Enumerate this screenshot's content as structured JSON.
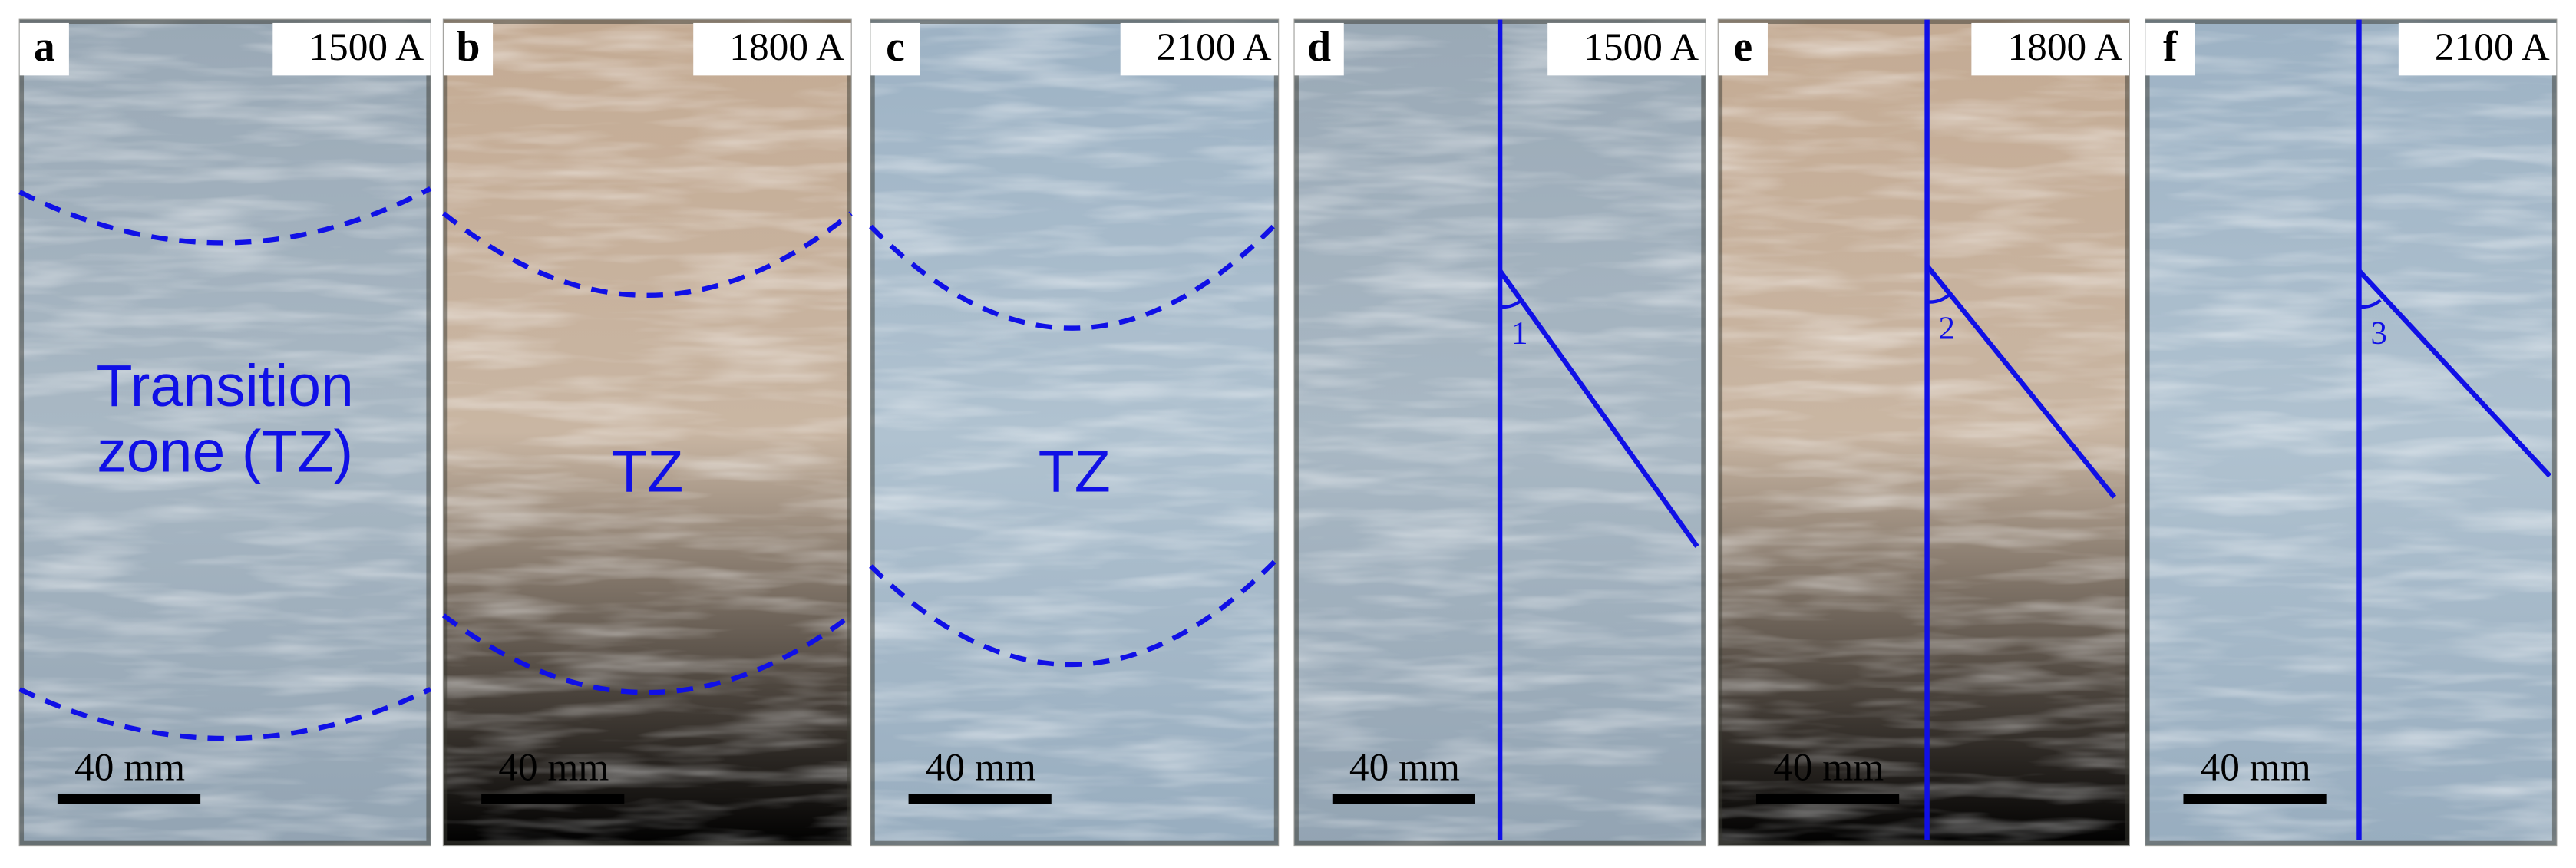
{
  "panels": [
    {
      "label": "a",
      "current": "1500 A",
      "zone_label": [
        "Transition",
        "zone (TZ)"
      ],
      "scale_bar": "40 mm"
    },
    {
      "label": "b",
      "current": "1800 A",
      "zone_label": [
        "TZ"
      ],
      "scale_bar": "40 mm"
    },
    {
      "label": "c",
      "current": "2100 A",
      "zone_label": [
        "TZ"
      ],
      "scale_bar": "40 mm"
    },
    {
      "label": "d",
      "current": "1500 A",
      "angle_label": "1",
      "scale_bar": "40 mm"
    },
    {
      "label": "e",
      "current": "1800 A",
      "angle_label": "2",
      "scale_bar": "40 mm"
    },
    {
      "label": "f",
      "current": "2100 A",
      "angle_label": "3",
      "scale_bar": "40 mm"
    }
  ]
}
